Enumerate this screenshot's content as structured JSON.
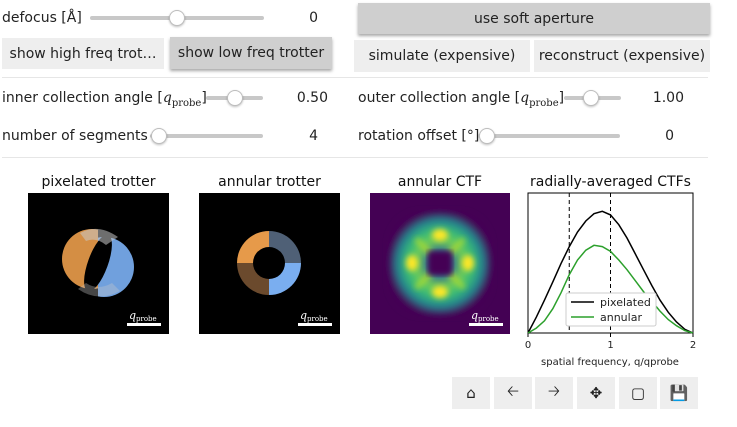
{
  "controls": {
    "defocus": {
      "label": "defocus [Å]",
      "value": "0",
      "fraction": 0.5
    },
    "inner": {
      "label_text": "inner collection angle [",
      "label_sym": "q",
      "label_sub": "probe",
      "label_end": "]",
      "value": "0.50",
      "fraction": 0.5
    },
    "outer": {
      "label_text": "outer collection angle [",
      "label_sym": "q",
      "label_sub": "probe",
      "label_end": "]",
      "value": "1.00",
      "fraction": 0.5
    },
    "segments": {
      "label": "number of segments",
      "value": "4",
      "fraction": 0.0
    },
    "rotation": {
      "label": "rotation offset [°]",
      "value": "0",
      "fraction": 0.0
    }
  },
  "buttons": {
    "soft_aperture": "use soft aperture",
    "high_freq": "show high freq trot…",
    "low_freq": "show low freq trotter",
    "simulate": "simulate (expensive)",
    "reconstruct": "reconstruct (expensive)"
  },
  "panels": {
    "pixelated_title": "pixelated trotter",
    "annular_title": "annular trotter",
    "ctf_title": "annular CTF",
    "scalebar_sym": "q",
    "scalebar_sub": "probe"
  },
  "colors": {
    "orange": "#e69a4a",
    "blue": "#7aaef0",
    "slate": "#4f6076",
    "brown": "#6b4a2d",
    "viridis_purple": "#440154",
    "viridis_yellow": "#fde725",
    "pixelated_line": "#000000",
    "annular_line": "#2ca02c"
  },
  "chart_data": {
    "type": "line",
    "title": "radially-averaged CTFs",
    "xlabel": "spatial frequency, q/qprobe",
    "ylabel": "",
    "xlim": [
      0,
      2
    ],
    "ylim": [
      0,
      1.15
    ],
    "xticks": [
      "0",
      "1",
      "2"
    ],
    "vlines": [
      0.5,
      1.0
    ],
    "legend_placement": "bottom-center",
    "grid": false,
    "series": [
      {
        "name": "pixelated",
        "color": "#000000",
        "x": [
          0,
          0.1,
          0.2,
          0.3,
          0.4,
          0.5,
          0.6,
          0.7,
          0.8,
          0.9,
          1.0,
          1.1,
          1.2,
          1.3,
          1.4,
          1.5,
          1.6,
          1.7,
          1.8,
          1.9,
          2.0
        ],
        "y": [
          0,
          0.13,
          0.27,
          0.42,
          0.57,
          0.71,
          0.83,
          0.92,
          0.98,
          1.0,
          0.97,
          0.89,
          0.78,
          0.65,
          0.52,
          0.39,
          0.27,
          0.17,
          0.09,
          0.03,
          0
        ]
      },
      {
        "name": "annular",
        "color": "#2ca02c",
        "x": [
          0,
          0.1,
          0.2,
          0.3,
          0.4,
          0.5,
          0.6,
          0.7,
          0.8,
          0.9,
          1.0,
          1.1,
          1.2,
          1.3,
          1.4,
          1.5,
          1.6,
          1.7,
          1.8,
          1.9,
          2.0
        ],
        "y": [
          0,
          0.04,
          0.1,
          0.2,
          0.33,
          0.48,
          0.6,
          0.68,
          0.72,
          0.71,
          0.67,
          0.6,
          0.52,
          0.43,
          0.34,
          0.26,
          0.18,
          0.11,
          0.06,
          0.02,
          0
        ]
      }
    ]
  },
  "toolbar": {
    "home": "home-icon",
    "back": "back-arrow-icon",
    "forward": "forward-arrow-icon",
    "pan": "pan-icon",
    "zoom": "zoom-rect-icon",
    "save": "save-icon"
  }
}
